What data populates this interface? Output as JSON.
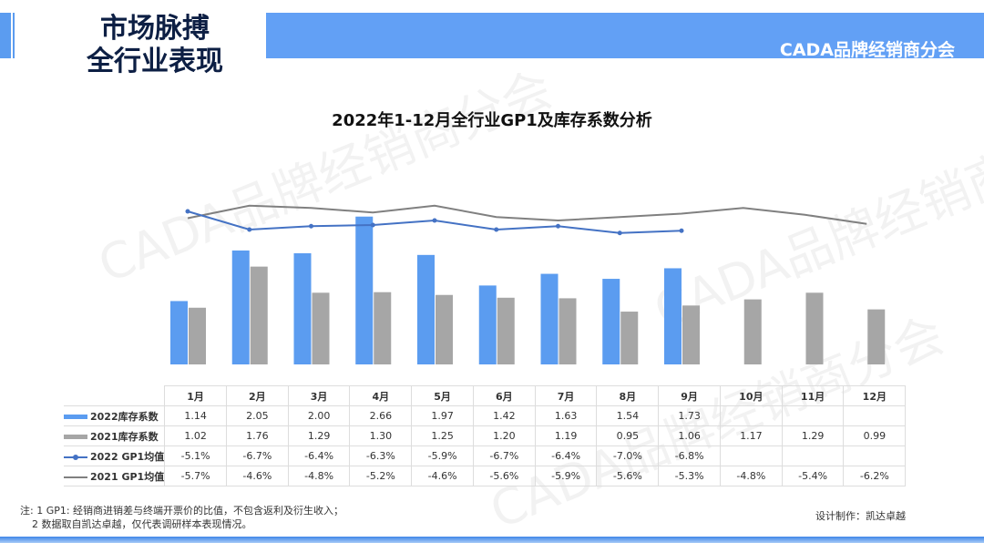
{
  "header": {
    "title_line1": "市场脉搏",
    "title_line2": "全行业表现",
    "org": "CADA品牌经销商分会"
  },
  "watermark": "CADA品牌经销商分会",
  "colors": {
    "blue": "#5b9cf0",
    "gray": "#a6a6a6",
    "line2022": "#4472c4",
    "line2021": "#808080"
  },
  "chart_data": {
    "type": "bar",
    "title": "2022年1-12月全行业GP1及库存系数分析",
    "categories": [
      "1月",
      "2月",
      "3月",
      "4月",
      "5月",
      "6月",
      "7月",
      "8月",
      "9月",
      "10月",
      "11月",
      "12月"
    ],
    "series": [
      {
        "name": "2022库存系数",
        "type": "bar",
        "values": [
          1.14,
          2.05,
          2.0,
          2.66,
          1.97,
          1.42,
          1.63,
          1.54,
          1.73,
          null,
          null,
          null
        ],
        "labels": [
          "1.14",
          "2.05",
          "2.00",
          "2.66",
          "1.97",
          "1.42",
          "1.63",
          "1.54",
          "1.73",
          "",
          "",
          ""
        ]
      },
      {
        "name": "2021库存系数",
        "type": "bar",
        "values": [
          1.02,
          1.76,
          1.29,
          1.3,
          1.25,
          1.2,
          1.19,
          0.95,
          1.06,
          1.17,
          1.29,
          0.99
        ],
        "labels": [
          "1.02",
          "1.76",
          "1.29",
          "1.30",
          "1.25",
          "1.20",
          "1.19",
          "0.95",
          "1.06",
          "1.17",
          "1.29",
          "0.99"
        ]
      },
      {
        "name": "2022 GP1均值",
        "type": "line",
        "values": [
          -5.1,
          -6.7,
          -6.4,
          -6.3,
          -5.9,
          -6.7,
          -6.4,
          -7.0,
          -6.8,
          null,
          null,
          null
        ],
        "labels": [
          "-5.1%",
          "-6.7%",
          "-6.4%",
          "-6.3%",
          "-5.9%",
          "-6.7%",
          "-6.4%",
          "-7.0%",
          "-6.8%",
          "",
          "",
          ""
        ]
      },
      {
        "name": "2021 GP1均值",
        "type": "line",
        "values": [
          -5.7,
          -4.6,
          -4.8,
          -5.2,
          -4.6,
          -5.6,
          -5.9,
          -5.6,
          -5.3,
          -4.8,
          -5.4,
          -6.2
        ],
        "labels": [
          "-5.7%",
          "-4.6%",
          "-4.8%",
          "-5.2%",
          "-4.6%",
          "-5.6%",
          "-5.9%",
          "-5.6%",
          "-5.3%",
          "-4.8%",
          "-5.4%",
          "-6.2%"
        ]
      }
    ]
  },
  "notes": {
    "line1": "注: 1 GP1: 经销商进销差与终端开票价的比值，不包含返利及衍生收入；",
    "line2": "2 数据取自凯达卓越，仅代表调研样本表现情况。"
  },
  "credit": "设计制作：凯达卓越"
}
